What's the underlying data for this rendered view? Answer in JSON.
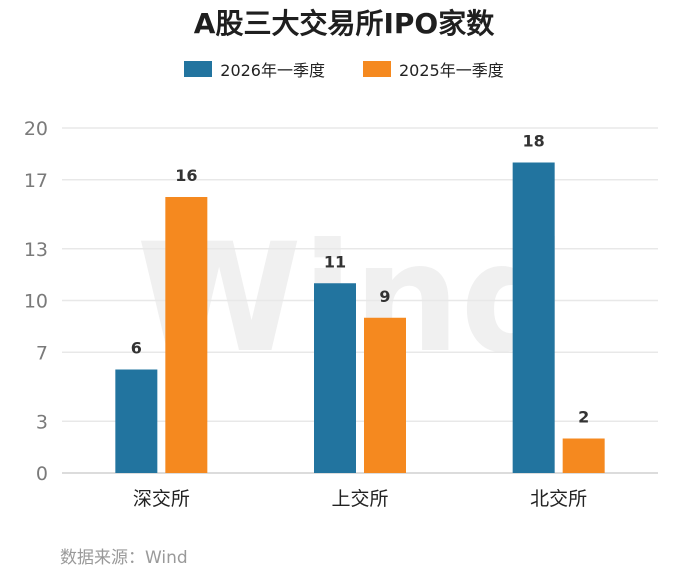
{
  "chart_data": {
    "type": "bar",
    "title": "A股三大交易所IPO家数",
    "categories": [
      "深交所",
      "上交所",
      "北交所"
    ],
    "series": [
      {
        "name": "2026年一季度",
        "color": "#22749f",
        "values": [
          6,
          11,
          18
        ]
      },
      {
        "name": "2025年一季度",
        "color": "#f5891f",
        "values": [
          16,
          9,
          2
        ]
      }
    ],
    "yticks": [
      "0",
      "3",
      "7",
      "10",
      "13",
      "17",
      "20"
    ],
    "ylim": [
      0,
      20
    ],
    "grid": true,
    "legend_position": "top",
    "xlabel": "",
    "ylabel": ""
  },
  "source": "数据来源：Wind",
  "watermark": "Wind"
}
